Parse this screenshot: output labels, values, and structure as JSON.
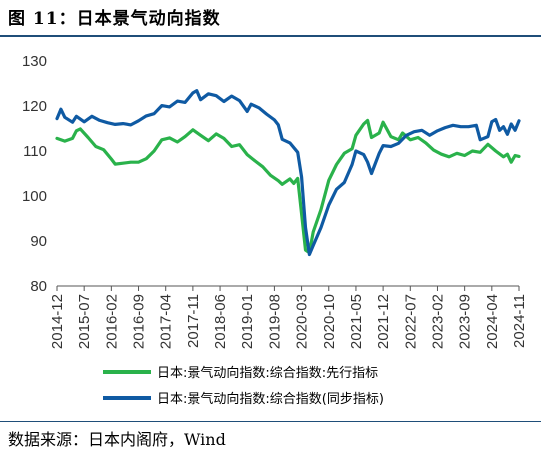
{
  "title": "图 11：日本景气动向指数",
  "source": "数据来源：日本内阁府，Wind",
  "chart_data": {
    "type": "line",
    "ylim": [
      80,
      130
    ],
    "yticks": [
      80,
      90,
      100,
      110,
      120,
      130
    ],
    "xlim": [
      "2014-12",
      "2024-11"
    ],
    "xticks": [
      "2014-12",
      "2015-07",
      "2016-02",
      "2016-09",
      "2017-04",
      "2017-11",
      "2018-06",
      "2019-01",
      "2019-08",
      "2020-03",
      "2020-10",
      "2021-05",
      "2021-12",
      "2022-07",
      "2023-02",
      "2023-09",
      "2024-04",
      "2024-11"
    ],
    "grid": false,
    "legend": "bottom",
    "series": [
      {
        "name": "日本:景气动向指数:综合指数:先行指标",
        "color": "#2ab24b",
        "points": [
          [
            "2014-12",
            112.8
          ],
          [
            "2015-02",
            112.2
          ],
          [
            "2015-04",
            112.8
          ],
          [
            "2015-05",
            114.5
          ],
          [
            "2015-06",
            114.9
          ],
          [
            "2015-08",
            113.0
          ],
          [
            "2015-10",
            111.0
          ],
          [
            "2015-12",
            110.3
          ],
          [
            "2016-02",
            108.2
          ],
          [
            "2016-03",
            107.1
          ],
          [
            "2016-05",
            107.3
          ],
          [
            "2016-07",
            107.5
          ],
          [
            "2016-09",
            107.5
          ],
          [
            "2016-11",
            108.3
          ],
          [
            "2017-01",
            110.0
          ],
          [
            "2017-03",
            112.5
          ],
          [
            "2017-05",
            112.9
          ],
          [
            "2017-07",
            112.0
          ],
          [
            "2017-09",
            113.2
          ],
          [
            "2017-11",
            114.7
          ],
          [
            "2018-01",
            113.5
          ],
          [
            "2018-03",
            112.3
          ],
          [
            "2018-05",
            113.8
          ],
          [
            "2018-07",
            112.8
          ],
          [
            "2018-09",
            111.0
          ],
          [
            "2018-11",
            111.4
          ],
          [
            "2019-01",
            109.2
          ],
          [
            "2019-03",
            107.8
          ],
          [
            "2019-05",
            106.5
          ],
          [
            "2019-07",
            104.6
          ],
          [
            "2019-09",
            103.4
          ],
          [
            "2019-10",
            102.6
          ],
          [
            "2019-12",
            103.8
          ],
          [
            "2020-01",
            102.8
          ],
          [
            "2020-02",
            103.9
          ],
          [
            "2020-03",
            96.0
          ],
          [
            "2020-04",
            88.0
          ],
          [
            "2020-05",
            87.4
          ],
          [
            "2020-06",
            92.0
          ],
          [
            "2020-08",
            97.0
          ],
          [
            "2020-10",
            103.5
          ],
          [
            "2020-12",
            107.0
          ],
          [
            "2021-02",
            109.5
          ],
          [
            "2021-04",
            110.5
          ],
          [
            "2021-05",
            113.5
          ],
          [
            "2021-07",
            116.0
          ],
          [
            "2021-08",
            116.8
          ],
          [
            "2021-09",
            113.0
          ],
          [
            "2021-11",
            114.0
          ],
          [
            "2021-12",
            116.4
          ],
          [
            "2022-02",
            113.2
          ],
          [
            "2022-04",
            112.5
          ],
          [
            "2022-05",
            114.0
          ],
          [
            "2022-07",
            112.5
          ],
          [
            "2022-09",
            113.0
          ],
          [
            "2022-11",
            111.8
          ],
          [
            "2023-01",
            110.2
          ],
          [
            "2023-03",
            109.3
          ],
          [
            "2023-05",
            108.7
          ],
          [
            "2023-07",
            109.5
          ],
          [
            "2023-09",
            109.0
          ],
          [
            "2023-11",
            110.0
          ],
          [
            "2024-01",
            109.7
          ],
          [
            "2024-03",
            111.5
          ],
          [
            "2024-05",
            110.0
          ],
          [
            "2024-07",
            108.7
          ],
          [
            "2024-08",
            109.3
          ],
          [
            "2024-09",
            107.5
          ],
          [
            "2024-10",
            109.0
          ],
          [
            "2024-11",
            108.8
          ]
        ]
      },
      {
        "name": "日本:景气动向指数:综合指数(同步指标)",
        "color": "#0f5aa3",
        "points": [
          [
            "2014-12",
            117.2
          ],
          [
            "2015-01",
            119.3
          ],
          [
            "2015-02",
            117.5
          ],
          [
            "2015-04",
            116.4
          ],
          [
            "2015-05",
            117.7
          ],
          [
            "2015-07",
            116.5
          ],
          [
            "2015-09",
            117.7
          ],
          [
            "2015-11",
            116.8
          ],
          [
            "2016-01",
            116.3
          ],
          [
            "2016-03",
            115.9
          ],
          [
            "2016-05",
            116.1
          ],
          [
            "2016-07",
            115.8
          ],
          [
            "2016-09",
            116.7
          ],
          [
            "2016-11",
            117.8
          ],
          [
            "2017-01",
            118.3
          ],
          [
            "2017-03",
            120.1
          ],
          [
            "2017-05",
            119.8
          ],
          [
            "2017-07",
            121.1
          ],
          [
            "2017-09",
            120.8
          ],
          [
            "2017-11",
            122.9
          ],
          [
            "2017-12",
            123.4
          ],
          [
            "2018-01",
            121.4
          ],
          [
            "2018-03",
            122.7
          ],
          [
            "2018-05",
            122.3
          ],
          [
            "2018-07",
            121.0
          ],
          [
            "2018-09",
            122.2
          ],
          [
            "2018-11",
            121.2
          ],
          [
            "2019-01",
            118.8
          ],
          [
            "2019-02",
            120.4
          ],
          [
            "2019-04",
            119.6
          ],
          [
            "2019-06",
            118.2
          ],
          [
            "2019-08",
            116.9
          ],
          [
            "2019-09",
            115.8
          ],
          [
            "2019-10",
            112.6
          ],
          [
            "2019-12",
            111.8
          ],
          [
            "2020-02",
            109.7
          ],
          [
            "2020-03",
            104.2
          ],
          [
            "2020-04",
            93.0
          ],
          [
            "2020-05",
            87.0
          ],
          [
            "2020-06",
            89.0
          ],
          [
            "2020-08",
            93.0
          ],
          [
            "2020-10",
            98.0
          ],
          [
            "2020-12",
            101.5
          ],
          [
            "2021-02",
            103.0
          ],
          [
            "2021-04",
            107.0
          ],
          [
            "2021-05",
            110.0
          ],
          [
            "2021-07",
            109.2
          ],
          [
            "2021-08",
            107.5
          ],
          [
            "2021-09",
            105.0
          ],
          [
            "2021-11",
            109.5
          ],
          [
            "2021-12",
            111.2
          ],
          [
            "2022-02",
            111.0
          ],
          [
            "2022-04",
            111.7
          ],
          [
            "2022-06",
            113.5
          ],
          [
            "2022-08",
            114.3
          ],
          [
            "2022-10",
            114.6
          ],
          [
            "2022-12",
            113.5
          ],
          [
            "2023-02",
            114.5
          ],
          [
            "2023-04",
            115.2
          ],
          [
            "2023-06",
            115.7
          ],
          [
            "2023-08",
            115.4
          ],
          [
            "2023-10",
            115.4
          ],
          [
            "2023-12",
            115.7
          ],
          [
            "2024-01",
            112.5
          ],
          [
            "2024-03",
            113.2
          ],
          [
            "2024-04",
            116.5
          ],
          [
            "2024-05",
            117.0
          ],
          [
            "2024-06",
            114.6
          ],
          [
            "2024-07",
            115.4
          ],
          [
            "2024-08",
            113.7
          ],
          [
            "2024-09",
            116.0
          ],
          [
            "2024-10",
            114.6
          ],
          [
            "2024-11",
            116.7
          ]
        ]
      }
    ]
  }
}
